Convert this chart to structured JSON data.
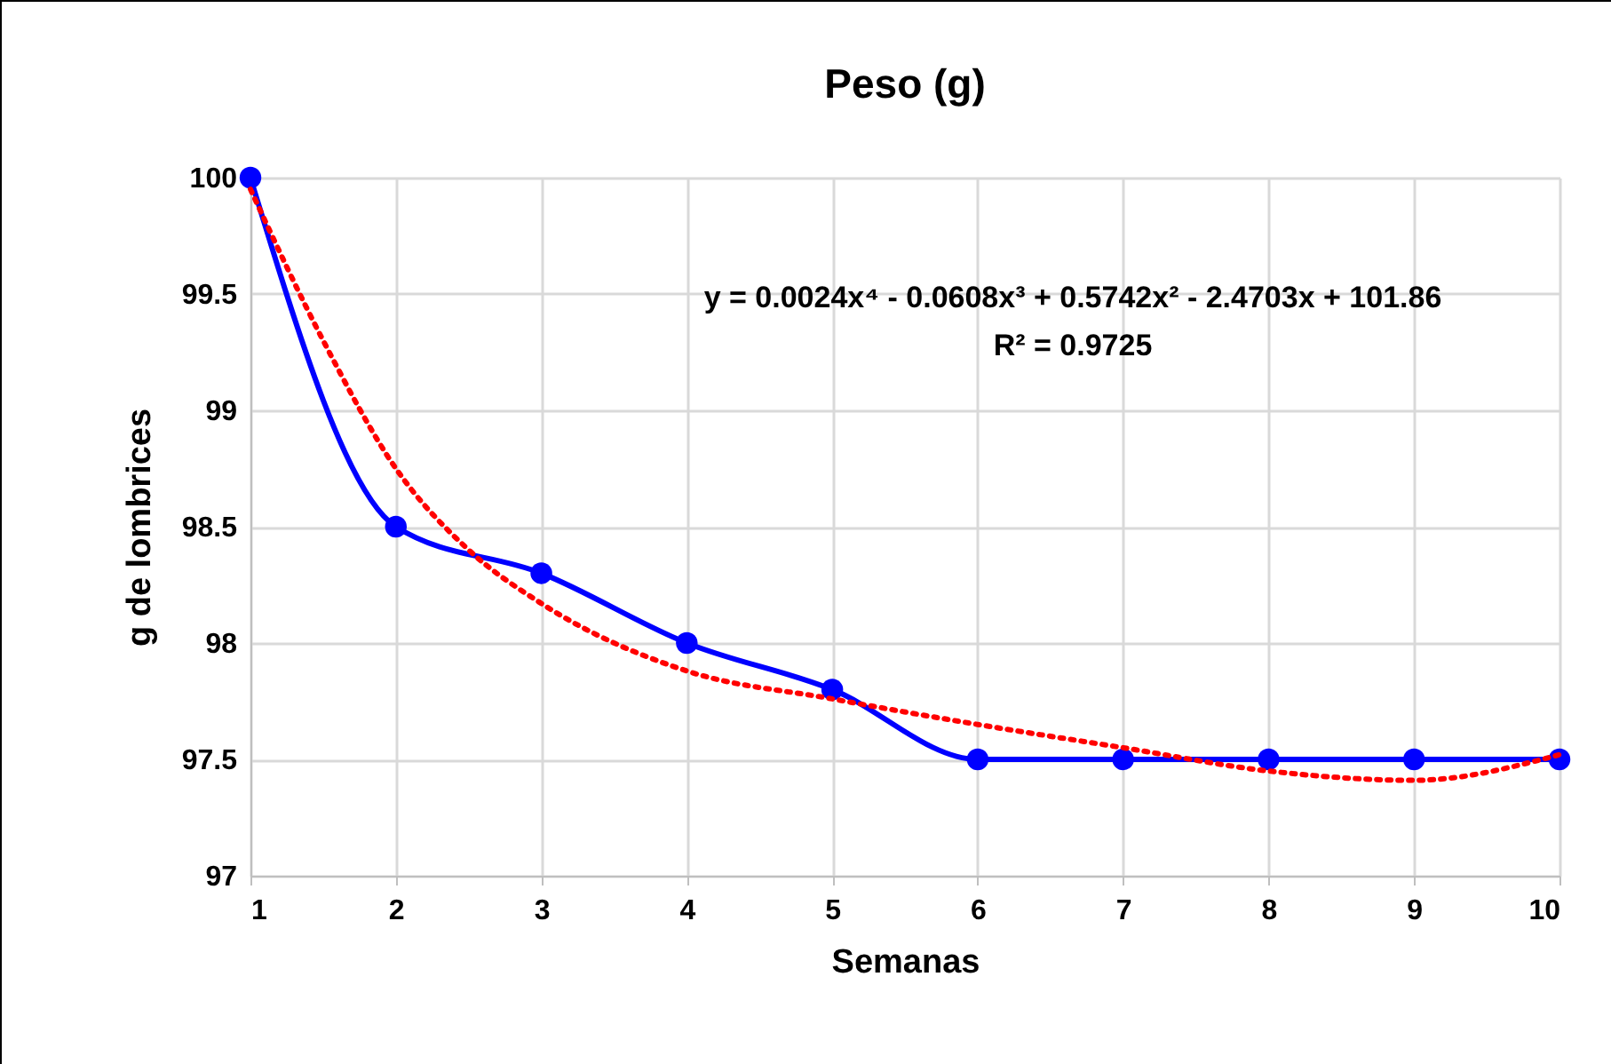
{
  "chart_data": {
    "type": "line",
    "title": "Peso (g)",
    "xlabel": "Semanas",
    "ylabel": "g de lombrices",
    "x": [
      1,
      2,
      3,
      4,
      5,
      6,
      7,
      8,
      9,
      10
    ],
    "series": [
      {
        "color": "#0000ff",
        "marker": "circle",
        "line_style": "solid",
        "values": [
          100,
          98.5,
          98.3,
          98.0,
          97.8,
          97.5,
          97.5,
          97.5,
          97.5,
          97.5
        ]
      },
      {
        "type": "line",
        "color": "#ff0000",
        "marker": "none",
        "line_style": "dotted",
        "x": [
          1,
          1.5,
          2,
          2.5,
          3,
          4,
          5,
          6,
          7,
          8,
          9,
          10
        ],
        "values": [
          99.95,
          99.3,
          98.75,
          98.4,
          98.17,
          97.88,
          97.76,
          97.65,
          97.55,
          97.45,
          97.41,
          97.52
        ]
      }
    ],
    "annotations": [
      "y = 0.0024x⁴ - 0.0608x³ + 0.5742x² - 2.4703x + 101.86",
      "R² = 0.9725"
    ],
    "xlim": [
      1,
      10
    ],
    "xticks": [
      1,
      2,
      3,
      4,
      5,
      6,
      7,
      8,
      9,
      10
    ],
    "ylim": [
      97,
      100
    ],
    "yticks": [
      97,
      97.5,
      98,
      98.5,
      99,
      99.5,
      100
    ],
    "grid": true
  }
}
